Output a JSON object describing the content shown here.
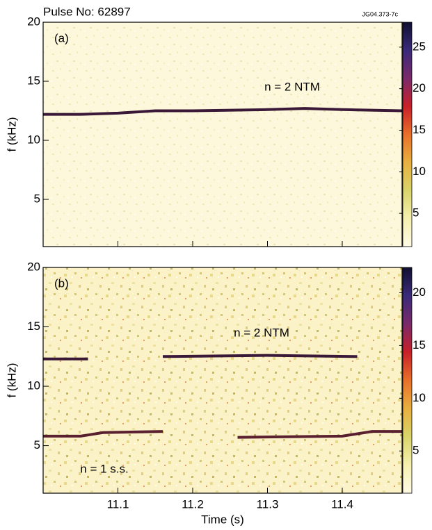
{
  "title": "Pulse No: 62897",
  "figure_id": "JG04.373-7c",
  "chart_data": [
    {
      "type": "spectrogram",
      "panel_label": "(a)",
      "y_label": "f (kHz)",
      "annotations": [
        "n = 2 NTM"
      ],
      "xlim": [
        11.0,
        11.48
      ],
      "xticks": [
        11.1,
        11.2,
        11.3,
        11.4
      ],
      "ylim": [
        1,
        20
      ],
      "yticks": [
        5,
        10,
        15,
        20
      ],
      "clim": [
        1,
        28
      ],
      "cticks": [
        5,
        10,
        15,
        20,
        25
      ],
      "colormap": [
        "#fffbe6",
        "#f6f0b0",
        "#d9d46a",
        "#e8b040",
        "#e8702a",
        "#c8202a",
        "#7a2a6a",
        "#3a2a7a",
        "#101030"
      ],
      "series": [
        {
          "color": "#3a1838",
          "x": [
            11.0,
            11.05,
            11.1,
            11.15,
            11.2,
            11.3,
            11.35,
            11.4,
            11.48
          ],
          "values": [
            12.2,
            12.2,
            12.3,
            12.5,
            12.5,
            12.6,
            12.7,
            12.6,
            12.5
          ]
        }
      ]
    },
    {
      "type": "spectrogram",
      "panel_label": "(b)",
      "y_label": "f (kHz)",
      "x_label": "Time (s)",
      "annotations": [
        "n = 2 NTM",
        "n = 1 s.s."
      ],
      "xlim": [
        11.0,
        11.48
      ],
      "xticks": [
        11.1,
        11.2,
        11.3,
        11.4
      ],
      "ylim": [
        1,
        20
      ],
      "yticks": [
        5,
        10,
        15,
        20
      ],
      "clim": [
        1,
        22.4
      ],
      "cticks": [
        5,
        10,
        15,
        20
      ],
      "colormap": [
        "#fffbe6",
        "#f6f0b0",
        "#d9d46a",
        "#e8b040",
        "#e8702a",
        "#c8202a",
        "#7a2a6a",
        "#3a2a7a",
        "#101030"
      ],
      "series": [
        {
          "color": "#3a1838",
          "x": [
            11.0,
            11.06,
            11.1,
            11.16,
            11.3,
            11.42
          ],
          "values": [
            12.3,
            12.3,
            null,
            12.5,
            12.6,
            12.5
          ]
        },
        {
          "color": "#5a2030",
          "x": [
            11.0,
            11.05,
            11.08,
            11.16,
            11.2,
            11.26,
            11.4,
            11.44,
            11.48
          ],
          "values": [
            5.8,
            5.8,
            6.1,
            6.2,
            null,
            5.7,
            5.8,
            6.2,
            6.2
          ]
        }
      ]
    }
  ]
}
